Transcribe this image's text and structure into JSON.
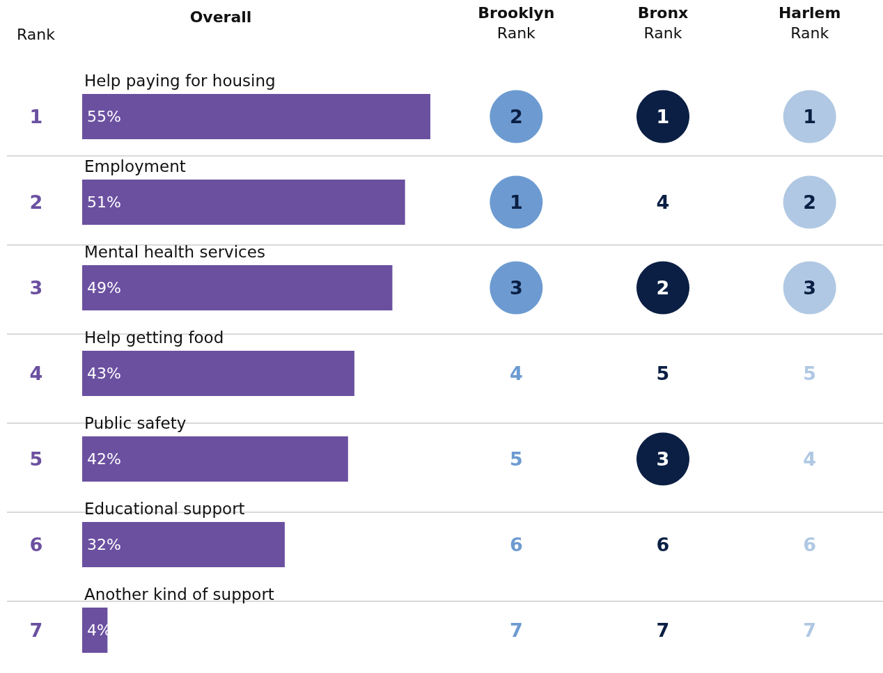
{
  "chart_data": [
    {
      "type": "bar",
      "orientation": "horizontal",
      "title": "Overall",
      "categories": [
        "Help paying for housing",
        "Employment",
        "Mental health services",
        "Help getting food",
        "Public safety",
        "Educational support",
        "Another kind of support"
      ],
      "values": [
        55,
        51,
        49,
        43,
        42,
        32,
        4
      ],
      "color": "#6b50a0",
      "data_labels": true,
      "value_labels": [
        "55%",
        "51%",
        "49%",
        "43%",
        "42%",
        "32%",
        "4%"
      ],
      "annotations": [
        "Rank",
        "1",
        "2",
        "3",
        "4",
        "5",
        "6",
        "7"
      ]
    },
    {
      "type": "heatmap",
      "categories": [
        "Brooklyn\nRank",
        "Bronx\nRank",
        "Harlem\nRank"
      ],
      "y_categories": [
        null,
        null,
        null,
        null,
        null,
        null,
        null
      ],
      "grid": "y",
      "data_labels": true,
      "cells": [
        [
          2,
          1,
          1
        ],
        [
          1,
          4,
          2
        ],
        [
          3,
          2,
          3
        ],
        [
          4,
          5,
          5
        ],
        [
          5,
          3,
          4
        ],
        [
          6,
          6,
          6
        ],
        [
          7,
          7,
          7
        ]
      ],
      "colors": [
        [
          "#6d9bd1",
          "#0b1f44",
          "#b0c8e3"
        ],
        [
          "#6d9bd1",
          null,
          "#b0c8e3"
        ],
        [
          "#6d9bd1",
          "#0b1f44",
          "#b0c8e3"
        ],
        [
          null,
          null,
          null
        ],
        [
          null,
          "#0b1f44",
          null
        ],
        [
          null,
          null,
          null
        ],
        [
          null,
          null,
          null
        ]
      ]
    }
  ]
}
